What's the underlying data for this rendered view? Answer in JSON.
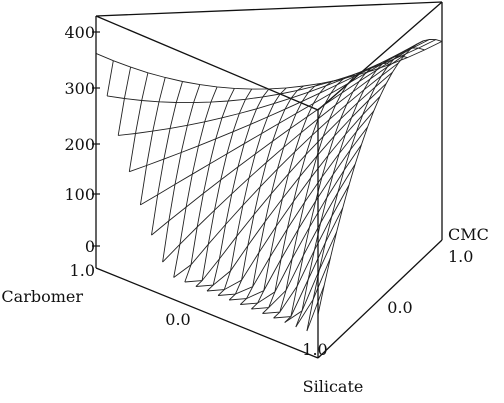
{
  "chart_data": {
    "type": "surface3d",
    "title": "",
    "z_axis": {
      "ticks": [
        "400",
        "300",
        "200",
        "100",
        "0"
      ],
      "range": [
        0,
        400
      ]
    },
    "axes": {
      "carbomer": {
        "label": "Carbomer",
        "ticks": [
          "1.0",
          "0.0"
        ]
      },
      "silicate": {
        "label": "Silicate",
        "ticks": [
          "1.0"
        ]
      },
      "cmc": {
        "label": "CMC",
        "ticks": [
          "1.0",
          "0.0"
        ]
      }
    },
    "surface_samples": [
      {
        "carbomer": 1.0,
        "silicate": 0.0,
        "cmc": 0.0,
        "z": 360
      },
      {
        "carbomer": 0.5,
        "silicate": 0.5,
        "cmc": 0.0,
        "z": 20
      },
      {
        "carbomer": 0.0,
        "silicate": 1.0,
        "cmc": 0.0,
        "z": 40
      },
      {
        "carbomer": 0.0,
        "silicate": 0.0,
        "cmc": 1.0,
        "z": 330
      },
      {
        "carbomer": 0.33,
        "silicate": 0.33,
        "cmc": 0.33,
        "z": 230
      },
      {
        "carbomer": 0.0,
        "silicate": 0.5,
        "cmc": 0.5,
        "z": 300
      }
    ],
    "grid": false,
    "legend": "none"
  }
}
